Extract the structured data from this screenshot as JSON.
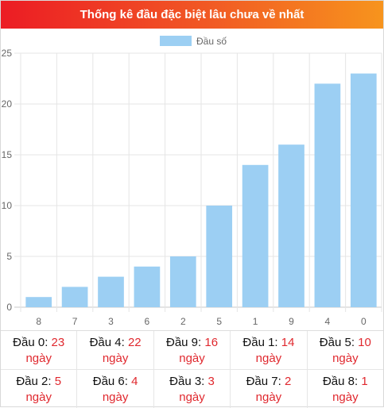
{
  "header": {
    "title": "Thống kê đầu đặc biệt lâu chưa về nhất"
  },
  "chart_data": {
    "type": "bar",
    "legend": "Đầu số",
    "legend_position": "top",
    "categories": [
      "8",
      "7",
      "3",
      "6",
      "2",
      "5",
      "1",
      "9",
      "4",
      "0"
    ],
    "values": [
      1,
      2,
      3,
      4,
      5,
      10,
      14,
      16,
      22,
      23
    ],
    "ylim": [
      0,
      25
    ],
    "yticks": [
      0,
      5,
      10,
      15,
      20,
      25
    ],
    "grid": true,
    "bar_color": "#9ccff3"
  },
  "stats": {
    "row1": [
      {
        "label": "Đầu 0: ",
        "value": "23",
        "unit": "ngày"
      },
      {
        "label": "Đầu 4: ",
        "value": "22",
        "unit": "ngày"
      },
      {
        "label": "Đầu 9: ",
        "value": "16",
        "unit": "ngày"
      },
      {
        "label": "Đầu 1: ",
        "value": "14",
        "unit": "ngày"
      },
      {
        "label": "Đầu 5: ",
        "value": "10",
        "unit": "ngày"
      }
    ],
    "row2": [
      {
        "label": "Đầu 2: ",
        "value": "5",
        "unit": "ngày"
      },
      {
        "label": "Đầu 6: ",
        "value": "4",
        "unit": "ngày"
      },
      {
        "label": "Đầu 3: ",
        "value": "3",
        "unit": "ngày"
      },
      {
        "label": "Đầu 7: ",
        "value": "2",
        "unit": "ngày"
      },
      {
        "label": "Đầu 8: ",
        "value": "1",
        "unit": "ngày"
      }
    ]
  }
}
